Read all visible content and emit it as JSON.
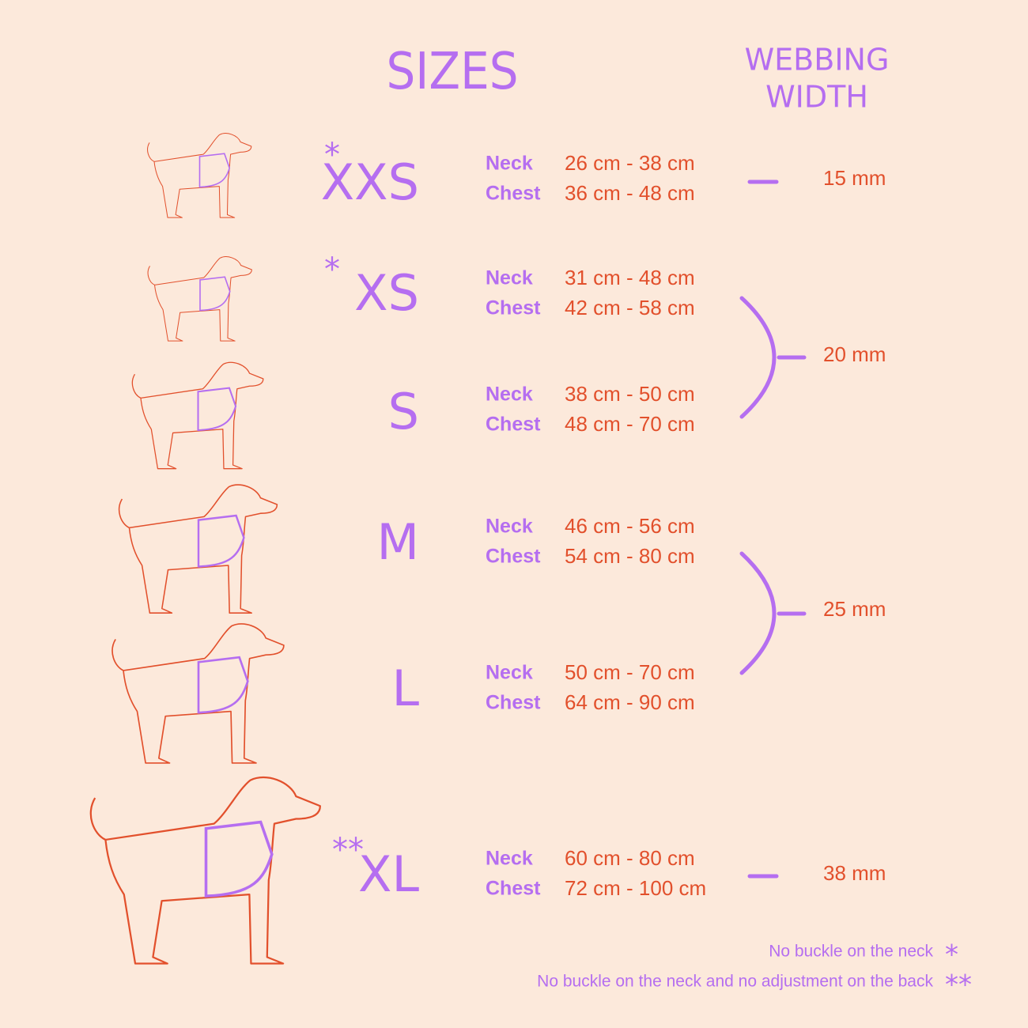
{
  "title": "SIZES",
  "webbing_title": [
    "WEBBING",
    "WIDTH"
  ],
  "sizes": [
    {
      "marker": "*",
      "name": "XXS",
      "neck_label": "Neck",
      "neck": "26 cm - 38 cm",
      "chest_label": "Chest",
      "chest": "36 cm - 48 cm"
    },
    {
      "marker": "*",
      "name": "XS",
      "neck_label": "Neck",
      "neck": "31 cm - 48 cm",
      "chest_label": "Chest",
      "chest": "42 cm - 58 cm"
    },
    {
      "name": "S",
      "neck_label": "Neck",
      "neck": "38 cm - 50 cm",
      "chest_label": "Chest",
      "chest": "48 cm - 70 cm"
    },
    {
      "name": "M",
      "neck_label": "Neck",
      "neck": "46 cm - 56 cm",
      "chest_label": "Chest",
      "chest": "54 cm - 80 cm"
    },
    {
      "name": "L",
      "neck_label": "Neck",
      "neck": "50 cm - 70 cm",
      "chest_label": "Chest",
      "chest": "64 cm - 90 cm"
    },
    {
      "marker": "**",
      "name": "XL",
      "neck_label": "Neck",
      "neck": "60 cm - 80 cm",
      "chest_label": "Chest",
      "chest": "72 cm - 100 cm"
    }
  ],
  "webbing": [
    "15 mm",
    "20 mm",
    "25 mm",
    "38 mm"
  ],
  "footnotes": [
    {
      "text": "No buckle on the neck",
      "marker": "*"
    },
    {
      "text": "No buckle on the neck and no adjustment on the back",
      "marker": "**"
    }
  ]
}
